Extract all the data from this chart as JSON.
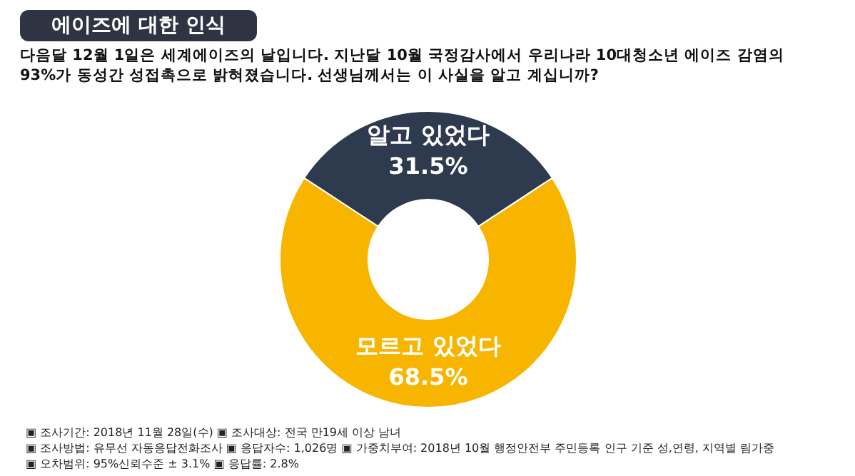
{
  "chart_data": {
    "type": "donut",
    "title": "에이즈에 대한 인식",
    "subtitle": "다음달 12월 1일은 세계에이즈의 날입니다. 지난달 10월 국정감사에서 우리나라 10대청소년 에이즈 감염의 93%가 동성간 성접촉으로 밝혀졌습니다. 선생님께서는 이 사실을 알고 계십니까?",
    "categories": [
      "알고 있었다",
      "모르고 있었다"
    ],
    "values": [
      31.5,
      68.5
    ],
    "value_labels": [
      "31.5%",
      "68.5%"
    ],
    "colors": [
      "#2e3b4e",
      "#f7b500"
    ],
    "annotations": [
      "▣ 조사기간: 2018년 11월 28일(수) ▣ 조사대상: 전국 만19세 이상 남녀",
      "▣ 조사방법: 유무선 자동응답전화조사 ▣ 응답자수: 1,026명 ▣ 가중치부여: 2018년 10월 행정안전부 주민등록 인구 기준 성,연령, 지역별 림가중",
      "▣ 오차범위: 95%신뢰수준 ± 3.1% ▣ 응답률: 2.8%"
    ]
  }
}
